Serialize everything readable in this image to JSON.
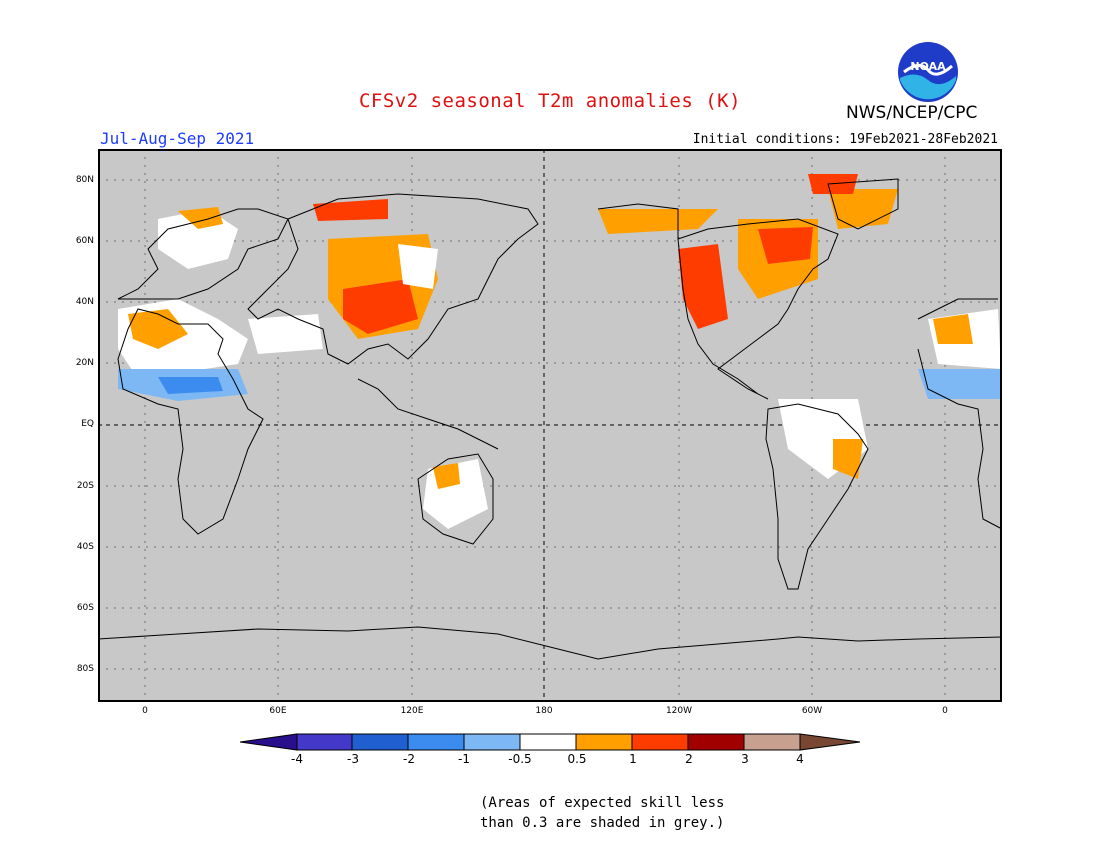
{
  "title": "CFSv2 seasonal T2m anomalies (K)",
  "agency": "NWS/NCEP/CPC",
  "logo_text": "NOAA",
  "season": "Jul-Aug-Sep 2021",
  "initial_conditions": "Initial conditions: 19Feb2021-28Feb2021",
  "note_line1": "(Areas of expected skill less",
  "note_line2": "than 0.3 are shaded in grey.)",
  "map": {
    "lat_labels": [
      "80N",
      "60N",
      "40N",
      "20N",
      "EQ",
      "20S",
      "40S",
      "60S",
      "80S"
    ],
    "lon_labels": [
      "0",
      "60E",
      "120E",
      "180",
      "120W",
      "60W",
      "0"
    ],
    "land_color": "#c8c8c8",
    "skill_grey": "#c0c0c0"
  },
  "colorbar": {
    "tick_labels": [
      "-4",
      "-3",
      "-2",
      "-1",
      "-0.5",
      "0.5",
      "1",
      "2",
      "3",
      "4"
    ],
    "colors": [
      "#2a0f8c",
      "#4338c8",
      "#1f5fcf",
      "#3c8cf0",
      "#7db8f5",
      "#ffffff",
      "#ffa000",
      "#ff3c00",
      "#a00000",
      "#c8a090",
      "#784632"
    ]
  }
}
